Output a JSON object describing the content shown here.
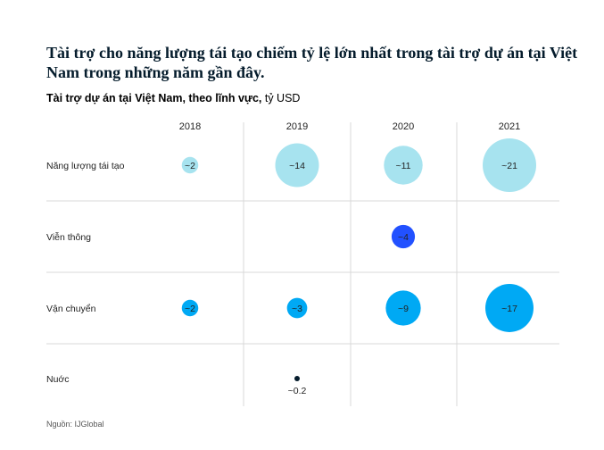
{
  "title": "Tài trợ cho năng lượng tái tạo chiếm tỷ lệ lớn nhất trong tài trợ dự án tại Việt Nam trong những năm gần đây.",
  "subtitle_bold": "Tài trợ dự án tại Việt Nam, theo lĩnh vực,",
  "subtitle_unit": " tỷ USD",
  "source": "Nguồn: IJGlobal",
  "colors": {
    "renewable": "#a7e3ef",
    "telecom": "#2251ff",
    "transport": "#00a9f4",
    "water": "#051c2c",
    "grid": "#d9d9d9"
  },
  "chart_data": {
    "type": "bubble",
    "columns": [
      "2018",
      "2019",
      "2020",
      "2021"
    ],
    "rows": [
      "Năng lượng tái tạo",
      "Viễn thông",
      "Vận chuyển",
      "Nuớc"
    ],
    "points": [
      {
        "row": 0,
        "col": 0,
        "value": 2,
        "label": "~2",
        "color": "renewable"
      },
      {
        "row": 0,
        "col": 1,
        "value": 14,
        "label": "~14",
        "color": "renewable"
      },
      {
        "row": 0,
        "col": 2,
        "value": 11,
        "label": "~11",
        "color": "renewable"
      },
      {
        "row": 0,
        "col": 3,
        "value": 21,
        "label": "~21",
        "color": "renewable"
      },
      {
        "row": 1,
        "col": 2,
        "value": 4,
        "label": "~4",
        "color": "telecom"
      },
      {
        "row": 2,
        "col": 0,
        "value": 2,
        "label": "~2",
        "color": "transport"
      },
      {
        "row": 2,
        "col": 1,
        "value": 3,
        "label": "~3",
        "color": "transport"
      },
      {
        "row": 2,
        "col": 2,
        "value": 9,
        "label": "~9",
        "color": "transport"
      },
      {
        "row": 2,
        "col": 3,
        "value": 17,
        "label": "~17",
        "color": "transport"
      },
      {
        "row": 3,
        "col": 1,
        "value": 0.2,
        "label": "~0.2",
        "color": "water",
        "label_below": true
      }
    ]
  }
}
